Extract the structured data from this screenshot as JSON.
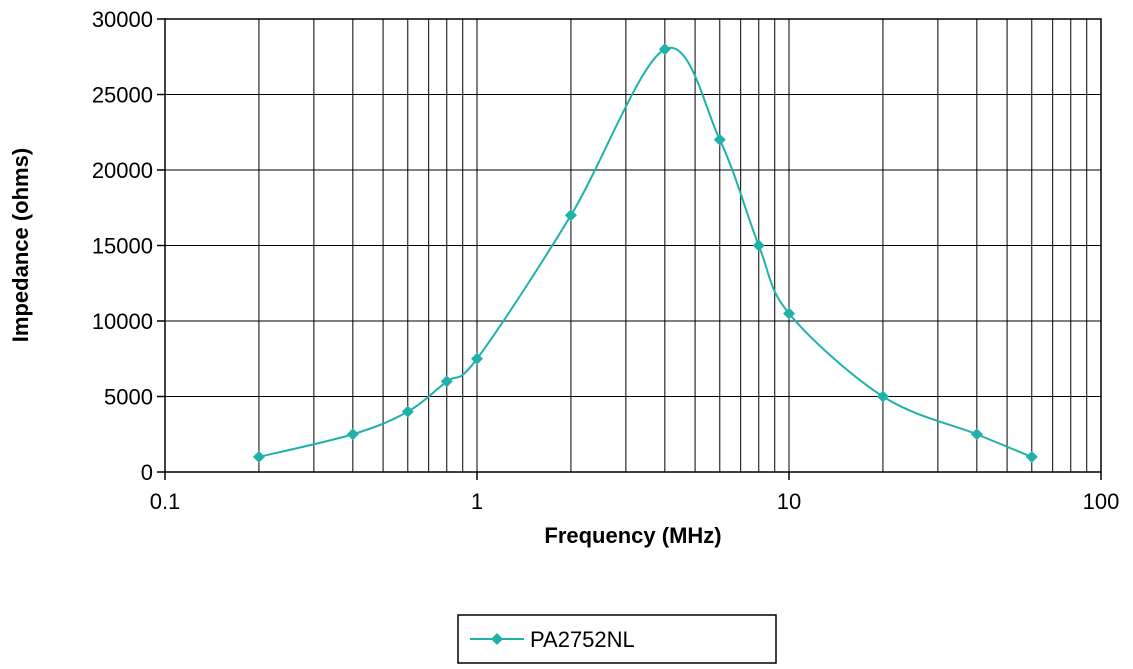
{
  "chart_data": {
    "type": "line",
    "xlabel": "Frequency (MHz)",
    "ylabel": "Impedance (ohms)",
    "x_scale": "log",
    "xlim": [
      0.1,
      100
    ],
    "ylim": [
      0,
      30000
    ],
    "x_ticks": [
      "0.1",
      "1",
      "10",
      "100"
    ],
    "y_ticks": [
      "0",
      "5000",
      "10000",
      "15000",
      "20000",
      "25000",
      "30000"
    ],
    "grid": true,
    "legend_position": "bottom",
    "series": [
      {
        "name": "PA2752NL",
        "color": "#20B2AA",
        "marker": "diamond",
        "x": [
          0.2,
          0.4,
          0.6,
          0.8,
          1,
          2,
          4,
          6,
          8,
          10,
          20,
          40,
          60
        ],
        "y": [
          1000,
          2500,
          4000,
          6000,
          7500,
          17000,
          28000,
          22000,
          15000,
          10500,
          5000,
          2500,
          1000
        ]
      }
    ]
  }
}
